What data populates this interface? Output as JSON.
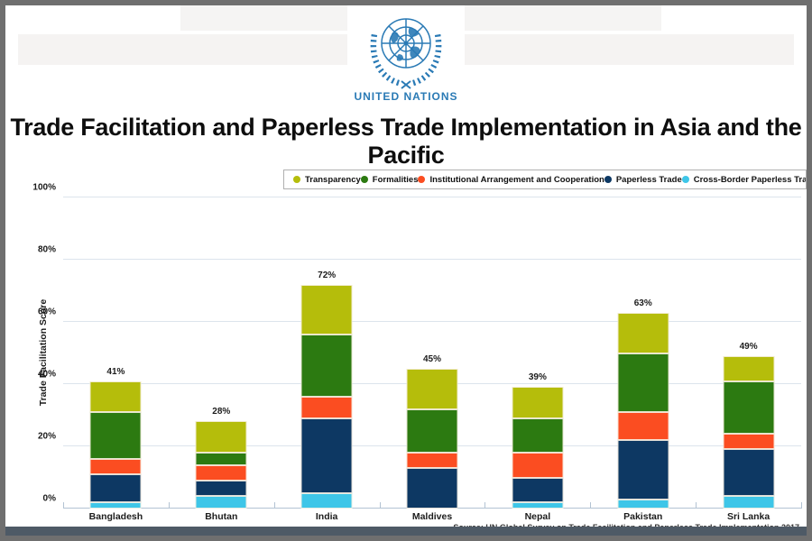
{
  "window": {
    "frame_color": "#6f6f6f",
    "bottom_bar_color": "#4e5a66"
  },
  "header": {
    "org_name": "UNITED NATIONS",
    "logo_icon": "un-emblem-icon",
    "brand_color": "#2a7ab5"
  },
  "title": "Trade Facilitation and Paperless Trade Implementation in Asia and the Pacific",
  "source": "Source: UN Global Survey on Trade Facilitation and Paperless Trade Implementation 2017",
  "chart_data": {
    "type": "bar",
    "stacked": true,
    "title": "Trade Facilitation and Paperless Trade Implementation in Asia and the Pacific",
    "ylabel": "Trade Facilitation Score",
    "xlabel": "",
    "ylim": [
      0,
      100
    ],
    "ytick_step": 20,
    "ytick_labels": [
      "0%",
      "20%",
      "40%",
      "60%",
      "80%",
      "100%"
    ],
    "grid": true,
    "legend_position": "top",
    "categories": [
      "Bangladesh",
      "Bhutan",
      "India",
      "Maldives",
      "Nepal",
      "Pakistan",
      "Sri Lanka"
    ],
    "totals": [
      41,
      28,
      72,
      45,
      39,
      63,
      49
    ],
    "total_labels": [
      "41%",
      "28%",
      "72%",
      "45%",
      "39%",
      "63%",
      "49%"
    ],
    "series": [
      {
        "name": "Transparency",
        "color": "#b5bd0b",
        "values": [
          10,
          10,
          16,
          13,
          10,
          13,
          8
        ]
      },
      {
        "name": "Formalities",
        "color": "#2c7a11",
        "values": [
          15,
          4,
          20,
          14,
          11,
          19,
          17
        ]
      },
      {
        "name": "Institutional Arrangement and Cooperation",
        "color": "#fb4d21",
        "values": [
          5,
          5,
          7,
          5,
          8,
          9,
          5
        ]
      },
      {
        "name": "Paperless Trade",
        "color": "#0d3863",
        "values": [
          9,
          5,
          24,
          13,
          8,
          19,
          15
        ]
      },
      {
        "name": "Cross-Border Paperless Trade",
        "color": "#3ec6e8",
        "values": [
          2,
          4,
          5,
          0,
          2,
          3,
          4
        ]
      }
    ],
    "stack_order_bottom_to_top": [
      "Cross-Border Paperless Trade",
      "Paperless Trade",
      "Institutional Arrangement and Cooperation",
      "Formalities",
      "Transparency"
    ]
  }
}
